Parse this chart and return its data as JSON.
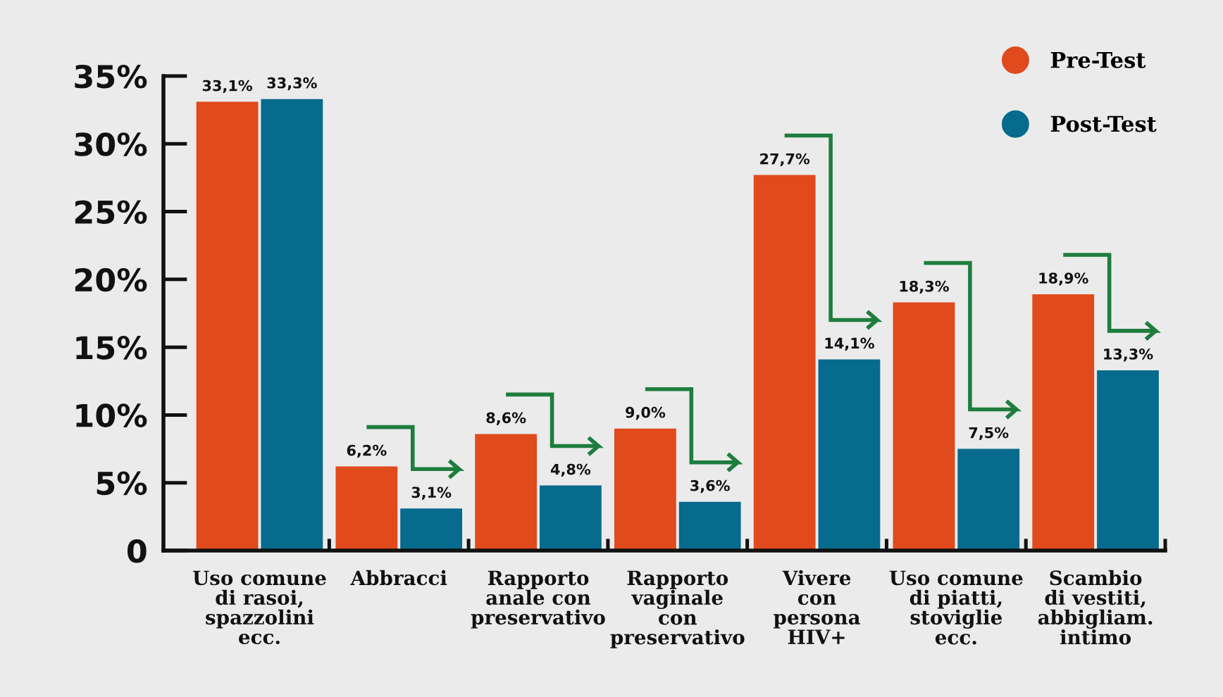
{
  "chart_data": {
    "type": "bar",
    "categories": [
      "Uso comune\ndi rasoi,\nspazzolini\necc.",
      "Abbracci",
      "Rapporto\nanale con\npreservativo",
      "Rapporto\nvaginale\ncon\npreservativo",
      "Vivere\ncon\npersona\nHIV+",
      "Uso comune\ndi piatti,\nstoviglie\necc.",
      "Scambio\ndi vestiti,\nabbigliam.\nintimo"
    ],
    "series": [
      {
        "name": "Pre-Test",
        "color": "#e04a1c",
        "values": [
          33.1,
          6.2,
          8.6,
          9.0,
          27.7,
          18.3,
          18.9
        ],
        "value_labels": [
          "33,1%",
          "6,2%",
          "8,6%",
          "9,0%",
          "27,7%",
          "18,3%",
          "18,9%"
        ]
      },
      {
        "name": "Post-Test",
        "color": "#066b8c",
        "values": [
          33.3,
          3.1,
          4.8,
          3.6,
          14.1,
          7.5,
          13.3
        ],
        "value_labels": [
          "33,3%",
          "3,1%",
          "4,8%",
          "3,6%",
          "14,1%",
          "7,5%",
          "13,3%"
        ]
      }
    ],
    "ylim": [
      0,
      35
    ],
    "yticks": [
      0,
      {
        "value": 5,
        "label": "5%"
      },
      {
        "value": 10,
        "label": "10%"
      },
      {
        "value": 15,
        "label": "15%"
      },
      {
        "value": 20,
        "label": "20%"
      },
      {
        "value": 25,
        "label": "25%"
      },
      {
        "value": 30,
        "label": "30%"
      },
      {
        "value": 35,
        "label": "35%"
      }
    ],
    "legend": "top right"
  }
}
